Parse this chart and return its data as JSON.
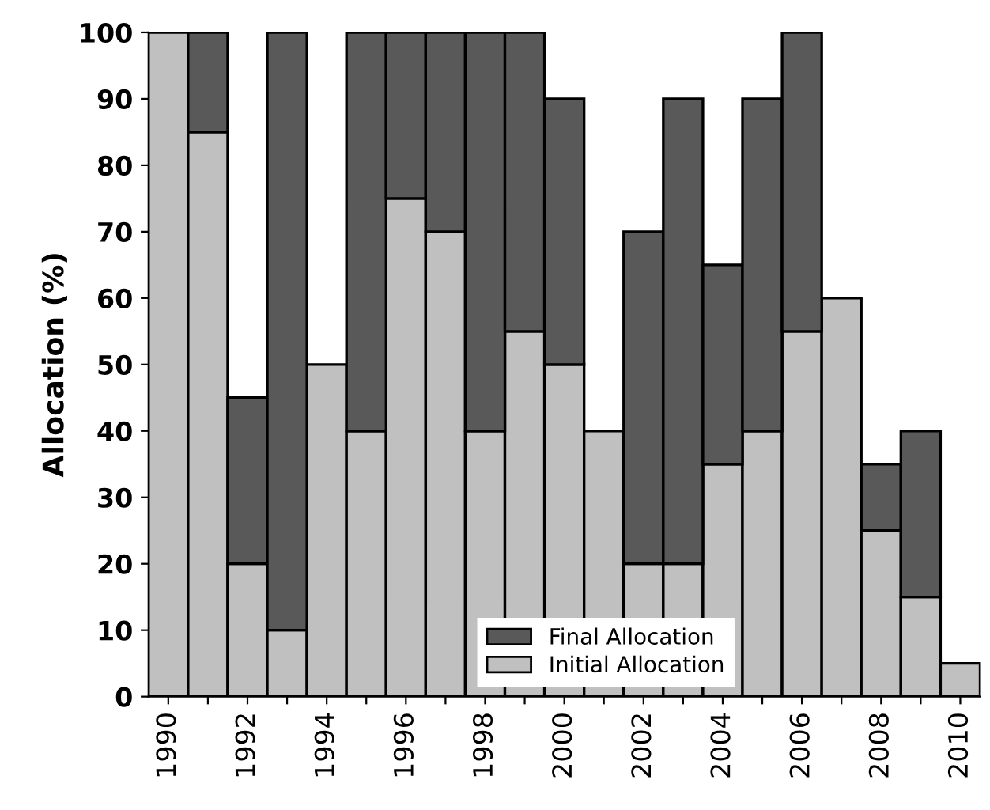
{
  "chart_data": {
    "type": "bar",
    "stacked": true,
    "ylabel": "Allocation (%)",
    "categories": [
      "1990",
      null,
      "1992",
      null,
      "1994",
      null,
      "1996",
      null,
      "1998",
      null,
      "2000",
      null,
      "2002",
      null,
      "2004",
      null,
      "2006",
      null,
      "2008",
      null,
      "2010"
    ],
    "series": [
      {
        "name": "Initial Allocation",
        "color": "#c0c0c0",
        "values": [
          100,
          85,
          20,
          10,
          50,
          40,
          75,
          70,
          40,
          55,
          50,
          40,
          20,
          20,
          35,
          40,
          55,
          60,
          25,
          15,
          5
        ]
      },
      {
        "name": "Final Allocation",
        "color": "#595959",
        "values": [
          0,
          15,
          25,
          90,
          0,
          60,
          25,
          30,
          60,
          45,
          40,
          0,
          50,
          70,
          30,
          50,
          45,
          0,
          10,
          25,
          0
        ]
      }
    ],
    "ylim": [
      0,
      100
    ],
    "yticks": [
      0,
      10,
      20,
      30,
      40,
      50,
      60,
      70,
      80,
      90,
      100
    ],
    "legend": "bottom",
    "grid": false
  }
}
